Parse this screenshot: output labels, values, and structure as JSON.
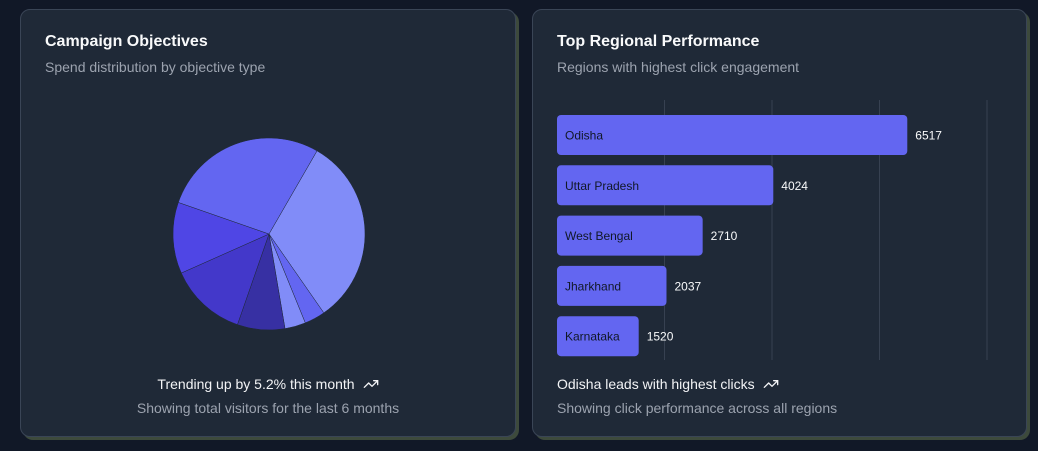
{
  "left_card": {
    "title": "Campaign Objectives",
    "subtitle": "Spend distribution by objective type",
    "footer_main": "Trending up by 5.2% this month",
    "footer_sub": "Showing total visitors for the last 6 months",
    "trend_icon": "trending-up-icon"
  },
  "right_card": {
    "title": "Top Regional Performance",
    "subtitle": "Regions with highest click engagement",
    "footer_main": "Odisha leads with highest clicks",
    "footer_sub": "Showing click performance across all regions",
    "trend_icon": "trending-up-icon"
  },
  "chart_data": [
    {
      "type": "pie",
      "slices": [
        {
          "value": 32,
          "color": "#818cf8"
        },
        {
          "value": 3.5,
          "color": "#6366f1"
        },
        {
          "value": 3.5,
          "color": "#818cf8"
        },
        {
          "value": 8,
          "color": "#3730a3"
        },
        {
          "value": 13,
          "color": "#4338ca"
        },
        {
          "value": 12,
          "color": "#4f46e5"
        },
        {
          "value": 28,
          "color": "#6366f1"
        }
      ]
    },
    {
      "type": "bar",
      "orientation": "horizontal",
      "categories": [
        "Odisha",
        "Uttar Pradesh",
        "West Bengal",
        "Jharkhand",
        "Karnataka"
      ],
      "values": [
        6517,
        4024,
        2710,
        2037,
        1520
      ],
      "xlim": [
        0,
        8000
      ],
      "grid": true,
      "bar_color": "#6366f1"
    }
  ]
}
